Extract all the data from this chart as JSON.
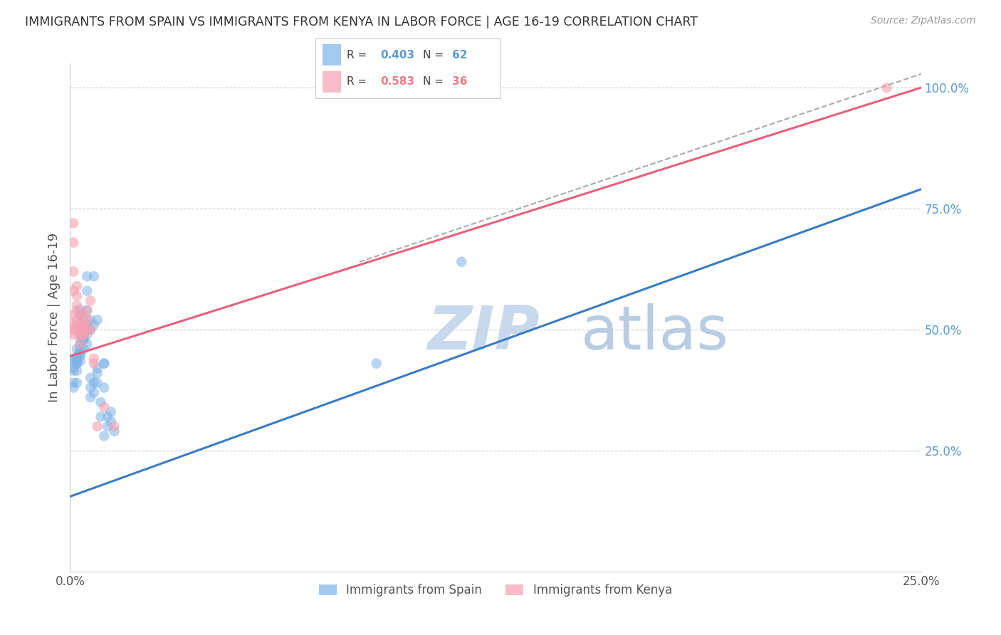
{
  "title": "IMMIGRANTS FROM SPAIN VS IMMIGRANTS FROM KENYA IN LABOR FORCE | AGE 16-19 CORRELATION CHART",
  "source": "Source: ZipAtlas.com",
  "ylabel": "In Labor Force | Age 16-19",
  "xlim": [
    0.0,
    0.25
  ],
  "ylim": [
    0.0,
    1.05
  ],
  "xticks": [
    0.0,
    0.05,
    0.1,
    0.15,
    0.2,
    0.25
  ],
  "xticklabels": [
    "0.0%",
    "",
    "",
    "",
    "",
    "25.0%"
  ],
  "yticks_right": [
    0.0,
    0.25,
    0.5,
    0.75,
    1.0
  ],
  "yticklabels_right": [
    "",
    "25.0%",
    "50.0%",
    "75.0%",
    "100.0%"
  ],
  "spain_color": "#7EB3E8",
  "kenya_color": "#F4A0B0",
  "legend_label_spain": "Immigrants from Spain",
  "legend_label_kenya": "Immigrants from Kenya",
  "spain_scatter": [
    [
      0.001,
      0.435
    ],
    [
      0.001,
      0.415
    ],
    [
      0.001,
      0.42
    ],
    [
      0.001,
      0.38
    ],
    [
      0.001,
      0.44
    ],
    [
      0.001,
      0.39
    ],
    [
      0.002,
      0.43
    ],
    [
      0.002,
      0.445
    ],
    [
      0.002,
      0.435
    ],
    [
      0.002,
      0.46
    ],
    [
      0.002,
      0.44
    ],
    [
      0.002,
      0.43
    ],
    [
      0.002,
      0.39
    ],
    [
      0.002,
      0.415
    ],
    [
      0.003,
      0.45
    ],
    [
      0.003,
      0.455
    ],
    [
      0.003,
      0.46
    ],
    [
      0.003,
      0.47
    ],
    [
      0.003,
      0.48
    ],
    [
      0.003,
      0.445
    ],
    [
      0.003,
      0.435
    ],
    [
      0.003,
      0.53
    ],
    [
      0.003,
      0.54
    ],
    [
      0.004,
      0.46
    ],
    [
      0.004,
      0.48
    ],
    [
      0.004,
      0.495
    ],
    [
      0.004,
      0.505
    ],
    [
      0.004,
      0.52
    ],
    [
      0.004,
      0.48
    ],
    [
      0.005,
      0.49
    ],
    [
      0.005,
      0.5
    ],
    [
      0.005,
      0.51
    ],
    [
      0.005,
      0.47
    ],
    [
      0.005,
      0.54
    ],
    [
      0.005,
      0.58
    ],
    [
      0.005,
      0.61
    ],
    [
      0.006,
      0.5
    ],
    [
      0.006,
      0.52
    ],
    [
      0.006,
      0.36
    ],
    [
      0.006,
      0.38
    ],
    [
      0.006,
      0.4
    ],
    [
      0.007,
      0.51
    ],
    [
      0.007,
      0.61
    ],
    [
      0.007,
      0.37
    ],
    [
      0.007,
      0.39
    ],
    [
      0.008,
      0.52
    ],
    [
      0.008,
      0.39
    ],
    [
      0.008,
      0.41
    ],
    [
      0.008,
      0.42
    ],
    [
      0.009,
      0.35
    ],
    [
      0.009,
      0.32
    ],
    [
      0.01,
      0.43
    ],
    [
      0.01,
      0.38
    ],
    [
      0.01,
      0.43
    ],
    [
      0.01,
      0.28
    ],
    [
      0.011,
      0.3
    ],
    [
      0.011,
      0.32
    ],
    [
      0.012,
      0.31
    ],
    [
      0.012,
      0.33
    ],
    [
      0.013,
      0.29
    ],
    [
      0.09,
      0.43
    ],
    [
      0.115,
      0.64
    ]
  ],
  "kenya_scatter": [
    [
      0.001,
      0.49
    ],
    [
      0.001,
      0.5
    ],
    [
      0.001,
      0.51
    ],
    [
      0.001,
      0.53
    ],
    [
      0.001,
      0.58
    ],
    [
      0.001,
      0.62
    ],
    [
      0.001,
      0.68
    ],
    [
      0.001,
      0.72
    ],
    [
      0.002,
      0.5
    ],
    [
      0.002,
      0.51
    ],
    [
      0.002,
      0.52
    ],
    [
      0.002,
      0.54
    ],
    [
      0.002,
      0.55
    ],
    [
      0.002,
      0.57
    ],
    [
      0.002,
      0.59
    ],
    [
      0.003,
      0.49
    ],
    [
      0.003,
      0.51
    ],
    [
      0.003,
      0.53
    ],
    [
      0.003,
      0.47
    ],
    [
      0.003,
      0.49
    ],
    [
      0.004,
      0.49
    ],
    [
      0.004,
      0.51
    ],
    [
      0.004,
      0.53
    ],
    [
      0.004,
      0.49
    ],
    [
      0.004,
      0.51
    ],
    [
      0.005,
      0.5
    ],
    [
      0.005,
      0.52
    ],
    [
      0.005,
      0.54
    ],
    [
      0.006,
      0.56
    ],
    [
      0.006,
      0.5
    ],
    [
      0.007,
      0.43
    ],
    [
      0.007,
      0.44
    ],
    [
      0.008,
      0.3
    ],
    [
      0.01,
      0.34
    ],
    [
      0.013,
      0.3
    ],
    [
      0.24,
      1.0
    ]
  ],
  "spain_line_x": [
    0.0,
    0.25
  ],
  "spain_line_y": [
    0.155,
    0.79
  ],
  "kenya_line_x": [
    0.0,
    0.25
  ],
  "kenya_line_y": [
    0.445,
    1.0
  ],
  "dash_line_x": [
    0.085,
    0.255
  ],
  "dash_line_y": [
    0.64,
    1.04
  ],
  "watermark_zip": "ZIP",
  "watermark_atlas": "atlas",
  "watermark_color": "#C5D8F0",
  "grid_color": "#CCCCCC",
  "title_color": "#333333",
  "axis_label_color": "#555555",
  "right_tick_color": "#5B9BD5",
  "legend_R_spain_color": "#5B9BD5",
  "legend_R_kenya_color": "#E87D8A",
  "background_color": "#FFFFFF"
}
